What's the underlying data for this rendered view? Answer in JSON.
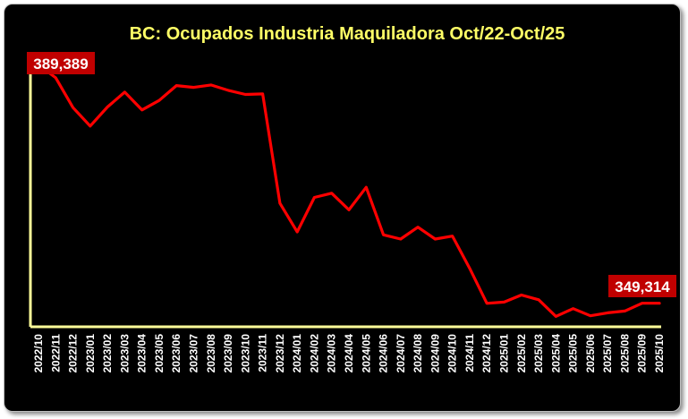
{
  "chart_data": {
    "type": "line",
    "title": "BC: Ocupados Industria Maquiladora Oct/22-Oct/25",
    "xlabel": "",
    "ylabel": "",
    "ylim": [
      345500,
      389600
    ],
    "grid": false,
    "legend": "none",
    "x": [
      "2022/10",
      "2022/11",
      "2022/12",
      "2023/01",
      "2023/02",
      "2023/03",
      "2023/04",
      "2023/05",
      "2023/06",
      "2023/07",
      "2023/08",
      "2023/09",
      "2023/10",
      "2023/11",
      "2023/12",
      "2024/01",
      "2024/02",
      "2024/03",
      "2024/04",
      "2024/05",
      "2024/06",
      "2024/07",
      "2024/08",
      "2024/09",
      "2024/10",
      "2024/11",
      "2024/12",
      "2025/01",
      "2025/02",
      "2025/03",
      "2025/04",
      "2025/05",
      "2025/06",
      "2025/07",
      "2025/08",
      "2025/09",
      "2025/10"
    ],
    "series": [
      {
        "color": "#ff0000",
        "values": [
          389389,
          387200,
          382200,
          379100,
          382300,
          384800,
          381800,
          383400,
          385900,
          385600,
          386000,
          385100,
          384400,
          384500,
          366100,
          361300,
          367100,
          367800,
          365000,
          368800,
          360800,
          360100,
          362100,
          360100,
          360600,
          355200,
          349300,
          349500,
          350700,
          349900,
          347100,
          348400,
          347200,
          347700,
          348000,
          349314,
          349314
        ]
      }
    ],
    "data_labels": [
      {
        "index": 0,
        "text": "389,389"
      },
      {
        "index": 36,
        "text": "349,314"
      }
    ],
    "colors": {
      "background": "#000000",
      "axis": "#ffff99",
      "line": "#ff0000",
      "title": "#ffff66",
      "label_box": "#c00000",
      "tick_text": "#ffffff"
    }
  }
}
